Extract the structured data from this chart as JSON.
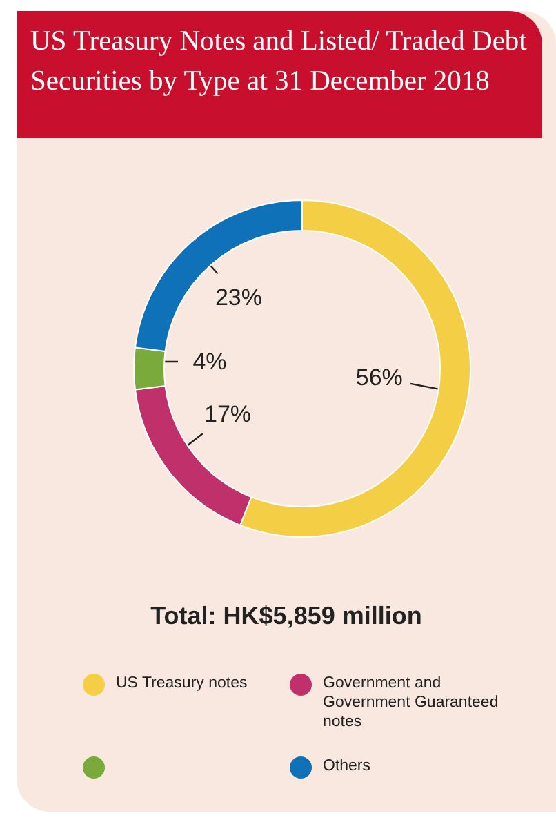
{
  "chart_data": {
    "type": "donut",
    "title": "US Treasury Notes and Listed/ Traded Debt Securities by Type at 31 December 2018",
    "categories": [
      "US Treasury notes",
      "Government and Government Guaranteed notes",
      null,
      "Others"
    ],
    "values": [
      56,
      17,
      4,
      23
    ],
    "value_labels": [
      "56%",
      "17%",
      "4%",
      "23%"
    ],
    "colors": [
      "#f4cf45",
      "#c0306a",
      "#7aa93c",
      "#0f72b9"
    ],
    "annotations": [
      "Total: HK$5,859 million"
    ],
    "legend": "bottom"
  }
}
